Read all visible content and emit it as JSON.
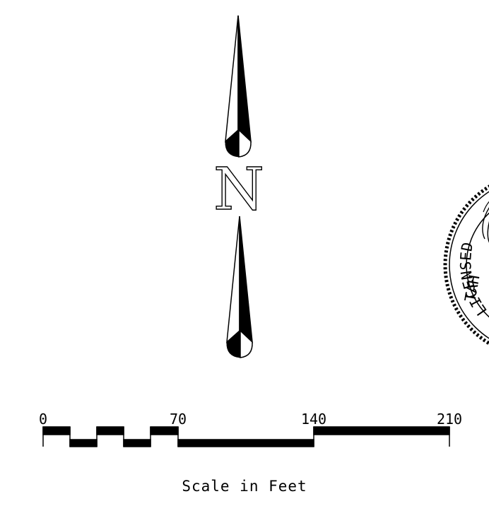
{
  "north_arrow": {
    "letter": "N"
  },
  "scale_bar": {
    "tick_labels": [
      "0",
      "70",
      "140",
      "210"
    ],
    "caption": "Scale in Feet"
  },
  "seal": {
    "text": "LICENSED",
    "partial_text": "TAH"
  }
}
